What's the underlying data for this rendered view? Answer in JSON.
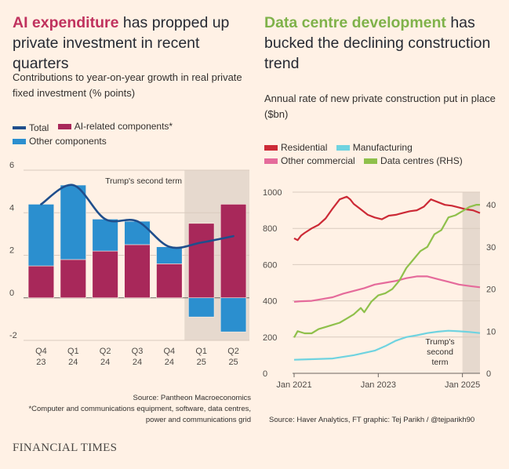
{
  "left": {
    "title_highlight": "AI expenditure",
    "title_rest": " has propped up private investment in recent quarters",
    "subtitle": "Contributions to year-on-year growth in real private fixed investment (% points)",
    "legend": [
      {
        "label": "Total",
        "color": "#1f4e8c",
        "kind": "line"
      },
      {
        "label": "AI-related components*",
        "color": "#a8285a",
        "kind": "bar"
      },
      {
        "label": "Other components",
        "color": "#2b8fcf",
        "kind": "bar"
      }
    ],
    "source": "Source: Pantheon Macroeconomics",
    "footnote": "*Computer and communications equipment, software, data centres, power and communications grid"
  },
  "right": {
    "title_highlight": "Data centre development",
    "title_rest": " has bucked the declining construction trend",
    "subtitle": "Annual rate of new private construction put in place ($bn)",
    "legend": [
      {
        "label": "Residential",
        "color": "#cc2a36",
        "kind": "bar"
      },
      {
        "label": "Manufacturing",
        "color": "#6fd3e0",
        "kind": "bar"
      },
      {
        "label": "Other commercial",
        "color": "#e56b9b",
        "kind": "bar"
      },
      {
        "label": "Data centres (RHS)",
        "color": "#8fc04b",
        "kind": "bar"
      }
    ],
    "source": "Source: Haver Analytics, FT graphic: Tej Parikh / @tejparikh90"
  },
  "brand": "FINANCIAL TIMES",
  "chart_data": [
    {
      "type": "bar",
      "categories": [
        "Q4 23",
        "Q1 24",
        "Q2 24",
        "Q3 24",
        "Q4 24",
        "Q1 25",
        "Q2 25"
      ],
      "series": [
        {
          "name": "AI-related components*",
          "values": [
            1.5,
            1.8,
            2.2,
            2.5,
            1.6,
            3.5,
            4.4
          ]
        },
        {
          "name": "Other components",
          "values": [
            2.9,
            3.5,
            1.5,
            1.1,
            0.8,
            -0.9,
            -1.6
          ]
        },
        {
          "name": "Total",
          "values": [
            4.4,
            5.3,
            3.7,
            3.6,
            2.4,
            2.6,
            2.9
          ]
        }
      ],
      "ylim": [
        -2,
        6
      ],
      "yticks": [
        -2,
        0,
        2,
        4,
        6
      ],
      "shaded_from_category": "Q1 25",
      "annotation": "Trump's second term",
      "legend_position": "top-left"
    },
    {
      "type": "line",
      "xlim": [
        "2021-01",
        "2025-06"
      ],
      "xticks": [
        "Jan 2021",
        "Jan 2023",
        "Jan 2025"
      ],
      "ylim": [
        0,
        1000
      ],
      "yticks": [
        0,
        200,
        400,
        600,
        800,
        1000
      ],
      "y2lim": [
        0,
        43
      ],
      "y2ticks": [
        0,
        10,
        20,
        30,
        40
      ],
      "shaded_from": "2025-01",
      "annotation": "Trump's second term",
      "legend_position": "top-left",
      "series": [
        {
          "name": "Residential",
          "axis": "left",
          "color": "#cc2a36",
          "x": [
            "2021-01",
            "2021-02",
            "2021-03",
            "2021-04",
            "2021-06",
            "2021-08",
            "2021-10",
            "2021-12",
            "2022-02",
            "2022-04",
            "2022-05",
            "2022-06",
            "2022-08",
            "2022-10",
            "2022-12",
            "2023-02",
            "2023-04",
            "2023-06",
            "2023-08",
            "2023-10",
            "2023-12",
            "2024-02",
            "2024-04",
            "2024-06",
            "2024-08",
            "2024-10",
            "2024-12",
            "2025-02",
            "2025-04",
            "2025-06"
          ],
          "values": [
            745,
            735,
            760,
            775,
            800,
            820,
            855,
            910,
            960,
            975,
            960,
            935,
            905,
            875,
            860,
            850,
            870,
            875,
            885,
            895,
            900,
            920,
            960,
            945,
            930,
            925,
            915,
            905,
            900,
            885
          ]
        },
        {
          "name": "Manufacturing",
          "axis": "left",
          "color": "#6fd3e0",
          "x": [
            "2021-01",
            "2021-06",
            "2021-12",
            "2022-06",
            "2022-12",
            "2023-03",
            "2023-06",
            "2023-09",
            "2023-12",
            "2024-03",
            "2024-06",
            "2024-09",
            "2024-12",
            "2025-03",
            "2025-06"
          ],
          "values": [
            75,
            78,
            82,
            100,
            125,
            150,
            180,
            200,
            210,
            222,
            230,
            235,
            232,
            228,
            222
          ]
        },
        {
          "name": "Other commercial",
          "axis": "left",
          "color": "#e56b9b",
          "x": [
            "2021-01",
            "2021-03",
            "2021-06",
            "2021-09",
            "2021-12",
            "2022-03",
            "2022-06",
            "2022-09",
            "2022-12",
            "2023-03",
            "2023-06",
            "2023-09",
            "2023-12",
            "2024-03",
            "2024-06",
            "2024-09",
            "2024-12",
            "2025-03",
            "2025-06"
          ],
          "values": [
            395,
            398,
            400,
            410,
            420,
            440,
            455,
            470,
            490,
            500,
            510,
            525,
            535,
            535,
            520,
            505,
            490,
            482,
            475
          ]
        },
        {
          "name": "Data centres (RHS)",
          "axis": "right",
          "color": "#8fc04b",
          "x": [
            "2021-01",
            "2021-02",
            "2021-04",
            "2021-06",
            "2021-08",
            "2021-10",
            "2021-12",
            "2022-02",
            "2022-04",
            "2022-06",
            "2022-08",
            "2022-09",
            "2022-11",
            "2023-01",
            "2023-03",
            "2023-05",
            "2023-07",
            "2023-09",
            "2023-11",
            "2024-01",
            "2024-03",
            "2024-05",
            "2024-07",
            "2024-09",
            "2024-11",
            "2025-01",
            "2025-03",
            "2025-05",
            "2025-06"
          ],
          "values": [
            8.5,
            10,
            9.5,
            9.5,
            10.5,
            11,
            11.5,
            12,
            13,
            14,
            15.5,
            14.5,
            17,
            18.5,
            19,
            20,
            22,
            25,
            27,
            29,
            30,
            33,
            34,
            37,
            37.5,
            38.5,
            39.5,
            40,
            40
          ]
        }
      ]
    }
  ]
}
